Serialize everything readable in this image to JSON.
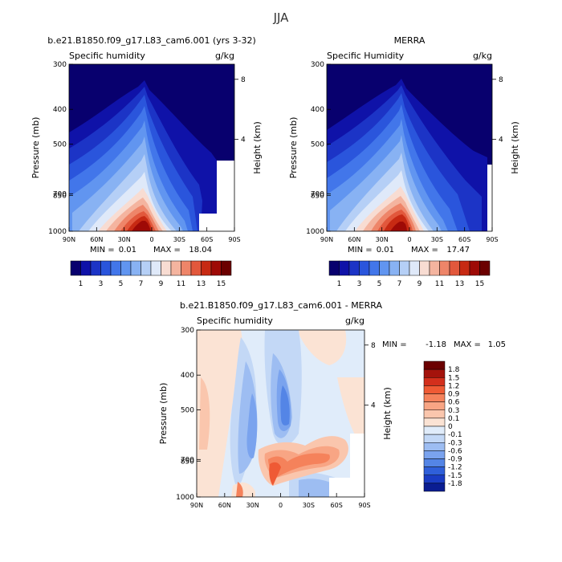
{
  "page": {
    "title": "JJA"
  },
  "chart_data": [
    {
      "type": "heatmap",
      "title": "b.e21.B1850.f09_g17.L83_cam6.001 (yrs 3-32)",
      "variable": "Specific humidity",
      "units": "g/kg",
      "ylabel": "Pressure (mb)",
      "ylabel_right": "Height (km)",
      "x_ticks": [
        "90N",
        "60N",
        "30N",
        "0",
        "30S",
        "60S",
        "90S"
      ],
      "y_ticks": [
        "300",
        "400",
        "500",
        "700",
        "850",
        "1000"
      ],
      "height_ticks": [
        "8",
        "4"
      ],
      "min": "0.01",
      "max": "18.04",
      "min_label": "MIN =",
      "max_label": "MAX ="
    },
    {
      "type": "heatmap",
      "title": "MERRA",
      "variable": "Specific Humidity",
      "units": "g/kg",
      "ylabel": "Pressure (mb)",
      "ylabel_right": "Height (km)",
      "x_ticks": [
        "90N",
        "60N",
        "30N",
        "0",
        "30S",
        "60S",
        "90S"
      ],
      "y_ticks": [
        "300",
        "400",
        "500",
        "700",
        "850",
        "1000"
      ],
      "height_ticks": [
        "8",
        "4"
      ],
      "min": "0.01",
      "max": "17.47",
      "min_label": "MIN =",
      "max_label": "MAX ="
    },
    {
      "type": "heatmap",
      "title": "b.e21.B1850.f09_g17.L83_cam6.001 - MERRA",
      "variable": "Specific humidity",
      "units": "g/kg",
      "ylabel": "Pressure (mb)",
      "ylabel_right": "Height (km)",
      "x_ticks": [
        "90N",
        "60N",
        "30N",
        "0",
        "30S",
        "60S",
        "90S"
      ],
      "y_ticks": [
        "300",
        "400",
        "500",
        "700",
        "850",
        "1000"
      ],
      "height_ticks": [
        "8",
        "4"
      ],
      "min": "-1.18",
      "max": "1.05",
      "min_label": "MIN =",
      "max_label": "MAX ="
    }
  ],
  "colorbars": {
    "main": {
      "colors": [
        "#08006e",
        "#0f12a8",
        "#1c34c6",
        "#2a55dc",
        "#4276ea",
        "#6195f0",
        "#88b2f3",
        "#b5cff6",
        "#dfe9f9",
        "#f8dcd2",
        "#f4b49f",
        "#ee8569",
        "#e2583c",
        "#c72a13",
        "#9e0a06",
        "#6b0000"
      ],
      "labels": [
        "1",
        "3",
        "5",
        "7",
        "9",
        "11",
        "13",
        "15"
      ]
    },
    "diff": {
      "colors": [
        "#6b0000",
        "#a4130c",
        "#d32f1c",
        "#ef5a34",
        "#f5825b",
        "#f8a584",
        "#fac6ad",
        "#fbe3d4",
        "#e0ecfa",
        "#c3d8f6",
        "#9dbdf2",
        "#7aa3ee",
        "#5485e6",
        "#2f5fda",
        "#1a3cc4",
        "#0a1d92"
      ],
      "labels": [
        "1.8",
        "1.5",
        "1.2",
        "0.9",
        "0.6",
        "0.3",
        "0.1",
        "0",
        "-0.1",
        "-0.3",
        "-0.6",
        "-0.9",
        "-1.2",
        "-1.5",
        "-1.8"
      ]
    }
  }
}
